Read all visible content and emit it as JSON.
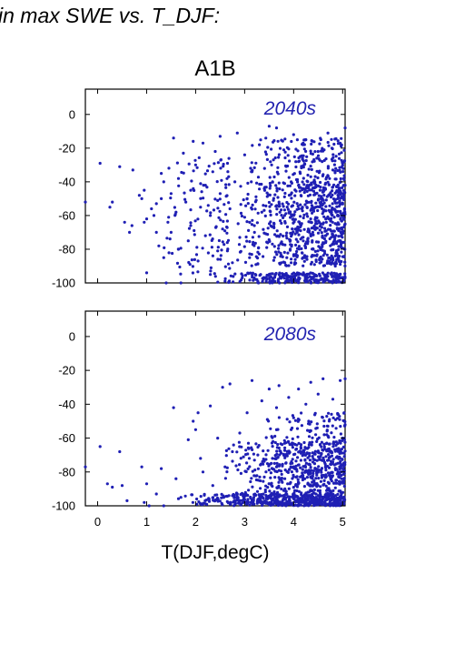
{
  "page": {
    "title": "in max SWE vs. T_DJF:"
  },
  "chart_data": {
    "type": "scatter",
    "scenario": "A1B",
    "xlabel": "T(DJF,degC)",
    "ylabel": "",
    "xlim": [
      -0.25,
      5.05
    ],
    "ylim": [
      -100,
      15
    ],
    "x_ticks": [
      0,
      1,
      2,
      3,
      4,
      5
    ],
    "y_ticks": [
      0,
      -20,
      -40,
      -60,
      -80,
      -100
    ],
    "grid": false,
    "legend": "none",
    "marker_color": "#1f1fb4",
    "text_color": "#2323b0",
    "panels": [
      {
        "period": "2040s",
        "points": [
          [
            -0.25,
            -52
          ],
          [
            0.05,
            -29
          ],
          [
            0.25,
            -55
          ],
          [
            0.3,
            -52
          ],
          [
            0.45,
            -31
          ],
          [
            0.55,
            -64
          ],
          [
            0.65,
            -70
          ],
          [
            0.7,
            -66
          ],
          [
            0.72,
            -33
          ],
          [
            0.85,
            -48
          ],
          [
            0.9,
            -50
          ],
          [
            0.95,
            -64
          ],
          [
            0.95,
            -45
          ],
          [
            1.0,
            -62
          ],
          [
            1.0,
            -94
          ],
          [
            1.1,
            -56
          ],
          [
            1.15,
            -60
          ],
          [
            1.2,
            -70
          ],
          [
            1.2,
            -53
          ],
          [
            1.25,
            -78
          ],
          [
            1.3,
            -35
          ],
          [
            1.3,
            -50
          ],
          [
            1.35,
            -40
          ],
          [
            1.35,
            -85
          ],
          [
            1.4,
            -100
          ],
          [
            1.45,
            -61
          ],
          [
            1.5,
            -47
          ],
          [
            1.5,
            -70
          ],
          [
            1.55,
            -14
          ],
          [
            1.6,
            -58
          ],
          [
            1.65,
            -38
          ],
          [
            1.65,
            -80
          ],
          [
            1.7,
            -100
          ],
          [
            1.75,
            -23
          ],
          [
            1.8,
            -52
          ],
          [
            1.85,
            -75
          ],
          [
            1.9,
            -66
          ],
          [
            1.9,
            -45
          ],
          [
            1.95,
            -16
          ],
          [
            2.0,
            -30
          ],
          [
            2.05,
            -87
          ],
          [
            2.1,
            -55
          ],
          [
            2.15,
            -17
          ],
          [
            2.2,
            -72
          ],
          [
            2.2,
            -42
          ],
          [
            2.3,
            -60
          ],
          [
            2.3,
            -95
          ],
          [
            2.35,
            -34
          ],
          [
            2.4,
            -22
          ],
          [
            2.45,
            -81
          ],
          [
            2.5,
            -47
          ],
          [
            2.5,
            -13
          ],
          [
            2.55,
            -68
          ],
          [
            2.6,
            -99
          ],
          [
            2.65,
            -29
          ],
          [
            2.7,
            -56
          ],
          [
            2.75,
            -88
          ],
          [
            2.8,
            -40
          ],
          [
            2.85,
            -11
          ],
          [
            2.9,
            -73
          ],
          [
            2.95,
            -97
          ],
          [
            3.0,
            -24
          ],
          [
            3.0,
            -61
          ],
          [
            3.05,
            -50
          ],
          [
            3.1,
            -85
          ],
          [
            3.15,
            -34
          ],
          [
            3.2,
            -70
          ],
          [
            3.25,
            -98
          ],
          [
            3.3,
            -18
          ],
          [
            3.35,
            -58
          ],
          [
            3.4,
            -44
          ],
          [
            3.45,
            -79
          ],
          [
            3.5,
            -7
          ],
          [
            3.5,
            -95
          ],
          [
            3.55,
            -30
          ],
          [
            3.6,
            -65
          ],
          [
            3.65,
            -8
          ],
          [
            3.7,
            -52
          ],
          [
            3.75,
            -88
          ],
          [
            3.8,
            -21
          ],
          [
            3.85,
            -72
          ],
          [
            3.9,
            -99
          ],
          [
            3.95,
            -40
          ],
          [
            4.0,
            -12
          ],
          [
            4.0,
            -60
          ],
          [
            4.05,
            -83
          ],
          [
            4.1,
            -28
          ],
          [
            4.15,
            -48
          ],
          [
            4.2,
            -94
          ],
          [
            4.25,
            -15
          ],
          [
            4.3,
            -68
          ],
          [
            4.35,
            -37
          ],
          [
            4.4,
            -80
          ],
          [
            4.45,
            -55
          ],
          [
            4.5,
            -22
          ],
          [
            4.55,
            -98
          ],
          [
            4.6,
            -45
          ],
          [
            4.65,
            -72
          ],
          [
            4.7,
            -11
          ],
          [
            4.75,
            -62
          ],
          [
            4.8,
            -33
          ],
          [
            4.85,
            -90
          ],
          [
            4.9,
            -50
          ],
          [
            4.95,
            -17
          ],
          [
            5.0,
            -76
          ],
          [
            5.05,
            -8
          ],
          [
            5.05,
            -42
          ],
          [
            5.05,
            -65
          ],
          [
            5.05,
            -97
          ]
        ],
        "density": [
          {
            "x": [
              2.3,
              5.05
            ],
            "y": [
              -100,
              -94
            ],
            "count": 240
          },
          {
            "x": [
              2.7,
              5.05
            ],
            "y": [
              -90,
              -40
            ],
            "count": 700
          },
          {
            "x": [
              3.0,
              5.05
            ],
            "y": [
              -40,
              -14
            ],
            "count": 180
          },
          {
            "x": [
              1.2,
              2.7
            ],
            "y": [
              -95,
              -25
            ],
            "count": 120
          }
        ]
      },
      {
        "period": "2080s",
        "points": [
          [
            -0.25,
            -77
          ],
          [
            0.05,
            -65
          ],
          [
            0.2,
            -87
          ],
          [
            0.3,
            -89
          ],
          [
            0.45,
            -68
          ],
          [
            0.5,
            -88
          ],
          [
            0.6,
            -97
          ],
          [
            0.9,
            -77
          ],
          [
            0.95,
            -98
          ],
          [
            1.0,
            -87
          ],
          [
            1.05,
            -100
          ],
          [
            1.2,
            -93
          ],
          [
            1.3,
            -78
          ],
          [
            1.35,
            -100
          ],
          [
            1.55,
            -42
          ],
          [
            1.6,
            -84
          ],
          [
            1.7,
            -95
          ],
          [
            1.85,
            -61
          ],
          [
            1.95,
            -50
          ],
          [
            2.0,
            -55
          ],
          [
            2.05,
            -45
          ],
          [
            2.1,
            -72
          ],
          [
            2.15,
            -80
          ],
          [
            2.3,
            -41
          ],
          [
            2.35,
            -88
          ],
          [
            2.45,
            -60
          ],
          [
            2.55,
            -30
          ],
          [
            2.6,
            -77
          ],
          [
            2.7,
            -28
          ],
          [
            2.75,
            -68
          ],
          [
            2.85,
            -93
          ],
          [
            2.9,
            -57
          ],
          [
            3.05,
            -45
          ],
          [
            3.15,
            -26
          ],
          [
            3.2,
            -73
          ],
          [
            3.35,
            -38
          ],
          [
            3.4,
            -83
          ],
          [
            3.5,
            -31
          ],
          [
            3.55,
            -59
          ],
          [
            3.65,
            -42
          ],
          [
            3.7,
            -29
          ],
          [
            3.8,
            -70
          ],
          [
            3.9,
            -36
          ],
          [
            3.95,
            -55
          ],
          [
            4.0,
            -48
          ],
          [
            4.1,
            -31
          ],
          [
            4.15,
            -66
          ],
          [
            4.25,
            -40
          ],
          [
            4.35,
            -27
          ],
          [
            4.45,
            -58
          ],
          [
            4.5,
            -34
          ],
          [
            4.6,
            -25
          ],
          [
            4.7,
            -53
          ],
          [
            4.8,
            -37
          ],
          [
            4.9,
            -46
          ],
          [
            4.95,
            -26
          ],
          [
            5.0,
            -60
          ],
          [
            5.05,
            -25
          ],
          [
            5.05,
            -52
          ]
        ],
        "density": [
          {
            "x": [
              1.6,
              5.05
            ],
            "y": [
              -100,
              -93
            ],
            "count": 500
          },
          {
            "x": [
              2.5,
              5.05
            ],
            "y": [
              -93,
              -62
            ],
            "count": 560
          },
          {
            "x": [
              3.2,
              5.05
            ],
            "y": [
              -62,
              -45
            ],
            "count": 80
          }
        ]
      }
    ]
  }
}
